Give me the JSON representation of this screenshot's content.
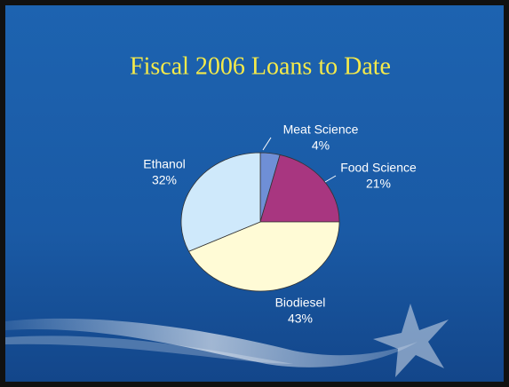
{
  "chart_data": {
    "type": "pie",
    "title": "Fiscal 2006 Loans to Date",
    "categories": [
      "Meat Science",
      "Food Science",
      "Biodiesel",
      "Ethanol"
    ],
    "values": [
      4,
      21,
      43,
      32
    ],
    "value_labels": [
      "4%",
      "21%",
      "43%",
      "32%"
    ],
    "colors": [
      "#6f8fd6",
      "#a83680",
      "#fffbd6",
      "#cfe9fb"
    ]
  }
}
